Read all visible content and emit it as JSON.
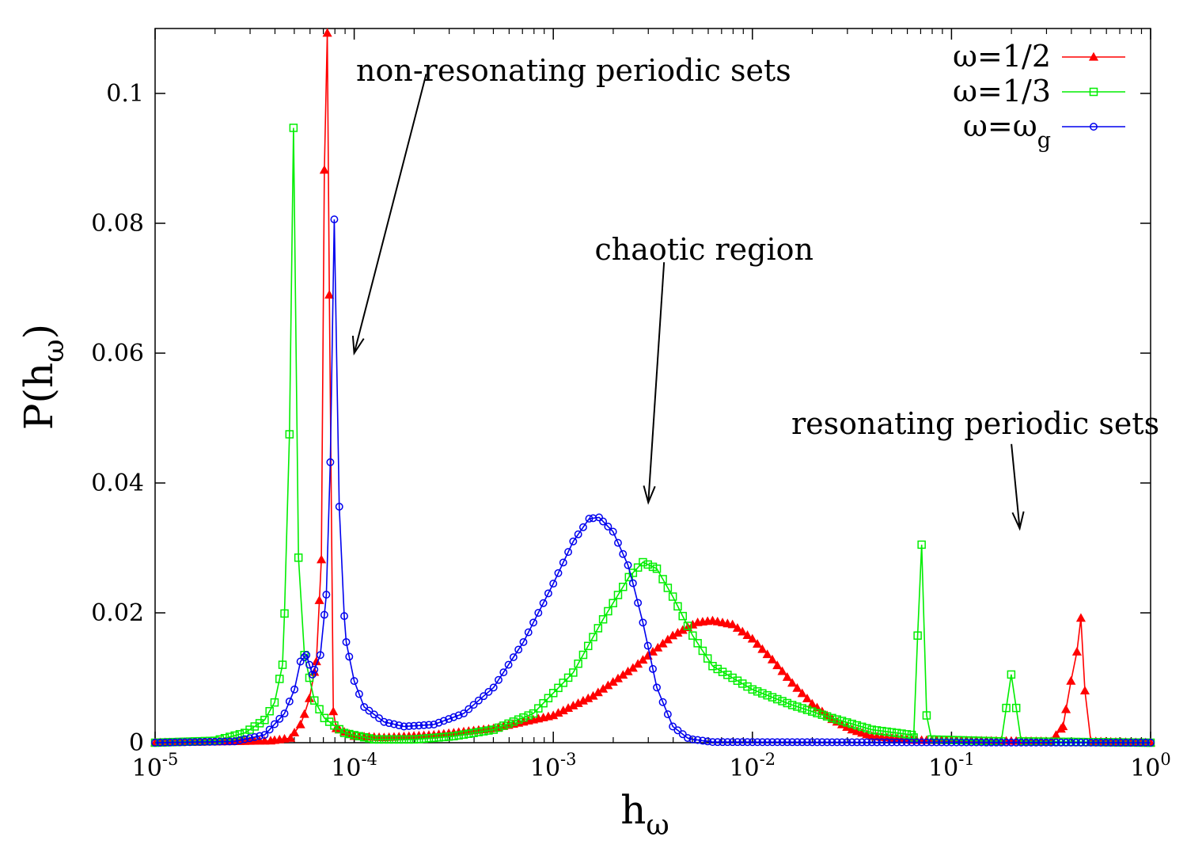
{
  "chart_data": {
    "type": "line",
    "xscale": "log",
    "xlim": [
      1e-05,
      1
    ],
    "ylim": [
      0,
      0.11
    ],
    "grid": false,
    "legend_position": "top-right",
    "xlabel": {
      "base": "h",
      "sub": "ω"
    },
    "ylabel": {
      "pre": "P(h",
      "sub": "ω",
      "post": ")"
    },
    "x_ticks": [
      {
        "value": 1e-05,
        "base": "10",
        "exp": "-5"
      },
      {
        "value": 0.0001,
        "base": "10",
        "exp": "-4"
      },
      {
        "value": 0.001,
        "base": "10",
        "exp": "-3"
      },
      {
        "value": 0.01,
        "base": "10",
        "exp": "-2"
      },
      {
        "value": 0.1,
        "base": "10",
        "exp": "-1"
      },
      {
        "value": 1,
        "base": "10",
        "exp": "0"
      }
    ],
    "y_ticks": [
      {
        "value": 0,
        "label": "0"
      },
      {
        "value": 0.02,
        "label": "0.02"
      },
      {
        "value": 0.04,
        "label": "0.04"
      },
      {
        "value": 0.06,
        "label": "0.06"
      },
      {
        "value": 0.08,
        "label": "0.08"
      },
      {
        "value": 0.1,
        "label": "0.1"
      }
    ],
    "annotations": [
      {
        "text": "non-resonating periodic sets",
        "arrow_from": [
          0.00023,
          0.103
        ],
        "arrow_to": [
          0.0001,
          0.06
        ]
      },
      {
        "text": "chaotic region",
        "arrow_from": [
          0.0036,
          0.074
        ],
        "arrow_to": [
          0.003,
          0.037
        ]
      },
      {
        "text": "resonating periodic sets",
        "arrow_from": [
          0.2,
          0.046
        ],
        "arrow_to": [
          0.22,
          0.033
        ]
      }
    ],
    "series": [
      {
        "name": "ω=1/2",
        "legend": {
          "pre": "ω=1/2",
          "sub": ""
        },
        "color": "#ff0000",
        "marker": "triangle",
        "keypoints": [
          [
            -5.0,
            0.0
          ],
          [
            -4.42,
            0.0003
          ],
          [
            -4.32,
            0.0007
          ],
          [
            -4.27,
            0.0028
          ],
          [
            -4.23,
            0.006
          ],
          [
            -4.19,
            0.0125
          ],
          [
            -4.165,
            0.0282
          ],
          [
            -4.15,
            0.0882
          ],
          [
            -4.135,
            0.1093
          ],
          [
            -4.12,
            0.0488
          ],
          [
            -4.105,
            0.0048
          ],
          [
            -4.09,
            0.0022
          ],
          [
            -4.0,
            0.001
          ],
          [
            -3.85,
            0.0008
          ],
          [
            -3.6,
            0.0012
          ],
          [
            -3.3,
            0.0022
          ],
          [
            -3.0,
            0.0042
          ],
          [
            -2.8,
            0.0072
          ],
          [
            -2.6,
            0.0115
          ],
          [
            -2.4,
            0.0165
          ],
          [
            -2.28,
            0.0185
          ],
          [
            -2.2,
            0.0188
          ],
          [
            -2.1,
            0.0182
          ],
          [
            -2.0,
            0.016
          ],
          [
            -1.9,
            0.0128
          ],
          [
            -1.8,
            0.0092
          ],
          [
            -1.7,
            0.006
          ],
          [
            -1.6,
            0.0036
          ],
          [
            -1.5,
            0.002
          ],
          [
            -1.4,
            0.001
          ],
          [
            -1.2,
            0.0004
          ],
          [
            -0.5,
            0.0002
          ],
          [
            -0.44,
            0.0025
          ],
          [
            -0.4,
            0.0095
          ],
          [
            -0.37,
            0.014
          ],
          [
            -0.35,
            0.0192
          ],
          [
            -0.33,
            0.008
          ],
          [
            -0.3,
            0.0002
          ],
          [
            0.0,
            0.0
          ]
        ]
      },
      {
        "name": "ω=1/3",
        "legend": {
          "pre": "ω=1/3",
          "sub": ""
        },
        "color": "#00ee00",
        "marker": "square",
        "keypoints": [
          [
            -5.0,
            0.0
          ],
          [
            -4.7,
            0.0003
          ],
          [
            -4.55,
            0.0015
          ],
          [
            -4.45,
            0.0035
          ],
          [
            -4.4,
            0.0062
          ],
          [
            -4.36,
            0.012
          ],
          [
            -4.33,
            0.0357
          ],
          [
            -4.305,
            0.0947
          ],
          [
            -4.28,
            0.0285
          ],
          [
            -4.25,
            0.0135
          ],
          [
            -4.2,
            0.0065
          ],
          [
            -4.15,
            0.0038
          ],
          [
            -4.05,
            0.0015
          ],
          [
            -3.9,
            0.0005
          ],
          [
            -3.7,
            0.0005
          ],
          [
            -3.5,
            0.001
          ],
          [
            -3.3,
            0.002
          ],
          [
            -3.1,
            0.0045
          ],
          [
            -2.9,
            0.0108
          ],
          [
            -2.75,
            0.019
          ],
          [
            -2.62,
            0.0255
          ],
          [
            -2.55,
            0.0278
          ],
          [
            -2.48,
            0.0268
          ],
          [
            -2.4,
            0.0225
          ],
          [
            -2.3,
            0.0165
          ],
          [
            -2.2,
            0.0118
          ],
          [
            -2.0,
            0.0082
          ],
          [
            -1.8,
            0.0058
          ],
          [
            -1.6,
            0.0038
          ],
          [
            -1.4,
            0.002
          ],
          [
            -1.2,
            0.0012
          ],
          [
            -1.19,
            0.0008
          ],
          [
            -1.17,
            0.0165
          ],
          [
            -1.15,
            0.0305
          ],
          [
            -1.125,
            0.0042
          ],
          [
            -1.1,
            0.0005
          ],
          [
            -0.75,
            0.0002
          ],
          [
            -0.7,
            0.0105
          ],
          [
            -0.65,
            0.0002
          ],
          [
            0.0,
            0.0
          ]
        ]
      },
      {
        "name": "ω=ω_g",
        "legend": {
          "pre": "ω=ω",
          "sub": "g"
        },
        "color": "#0000ee",
        "marker": "circle",
        "keypoints": [
          [
            -5.0,
            0.0
          ],
          [
            -4.6,
            0.0002
          ],
          [
            -4.45,
            0.0012
          ],
          [
            -4.35,
            0.0045
          ],
          [
            -4.3,
            0.0082
          ],
          [
            -4.27,
            0.0125
          ],
          [
            -4.24,
            0.0135
          ],
          [
            -4.21,
            0.0105
          ],
          [
            -4.17,
            0.0135
          ],
          [
            -4.14,
            0.0228
          ],
          [
            -4.12,
            0.0432
          ],
          [
            -4.1,
            0.0806
          ],
          [
            -4.07,
            0.0275
          ],
          [
            -4.04,
            0.0155
          ],
          [
            -4.0,
            0.0095
          ],
          [
            -3.95,
            0.0055
          ],
          [
            -3.85,
            0.0032
          ],
          [
            -3.75,
            0.0025
          ],
          [
            -3.6,
            0.0028
          ],
          [
            -3.45,
            0.0045
          ],
          [
            -3.3,
            0.0085
          ],
          [
            -3.15,
            0.0155
          ],
          [
            -3.0,
            0.0245
          ],
          [
            -2.9,
            0.031
          ],
          [
            -2.82,
            0.0345
          ],
          [
            -2.77,
            0.0347
          ],
          [
            -2.7,
            0.0325
          ],
          [
            -2.62,
            0.027
          ],
          [
            -2.55,
            0.0185
          ],
          [
            -2.48,
            0.0085
          ],
          [
            -2.4,
            0.0025
          ],
          [
            -2.32,
            0.0006
          ],
          [
            -2.2,
            0.0001
          ],
          [
            0.0,
            0.0
          ]
        ]
      }
    ]
  }
}
